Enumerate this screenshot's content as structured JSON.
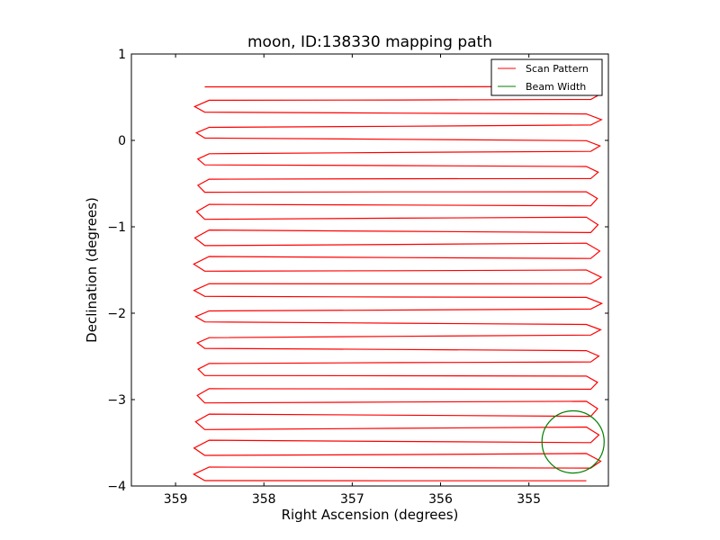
{
  "chart_data": {
    "type": "line",
    "title": "moon, ID:138330 mapping path",
    "xlabel": "Right Ascension (degrees)",
    "ylabel": "Declination (degrees)",
    "xlim": [
      359.5,
      354.1
    ],
    "ylim": [
      -4,
      1
    ],
    "xticks": [
      359,
      358,
      357,
      356,
      355
    ],
    "xtick_labels": [
      "359",
      "358",
      "357",
      "356",
      "355"
    ],
    "yticks": [
      1,
      0,
      -1,
      -2,
      -3,
      -4
    ],
    "ytick_labels": [
      "1",
      "0",
      "−1",
      "−2",
      "−3",
      "−4"
    ],
    "grid": false,
    "legend": {
      "position": "top-right"
    },
    "series": [
      {
        "name": "Scan Pattern",
        "color": "#ff0000",
        "kind": "raster",
        "ra_min": 354.25,
        "ra_max": 358.72,
        "dec_start": 0.62,
        "dec_end": -3.94,
        "n_scans": 31
      },
      {
        "name": "Beam Width",
        "color": "#008000",
        "kind": "circle",
        "center": [
          354.5,
          -3.49
        ],
        "radius_deg": 0.36
      }
    ]
  }
}
